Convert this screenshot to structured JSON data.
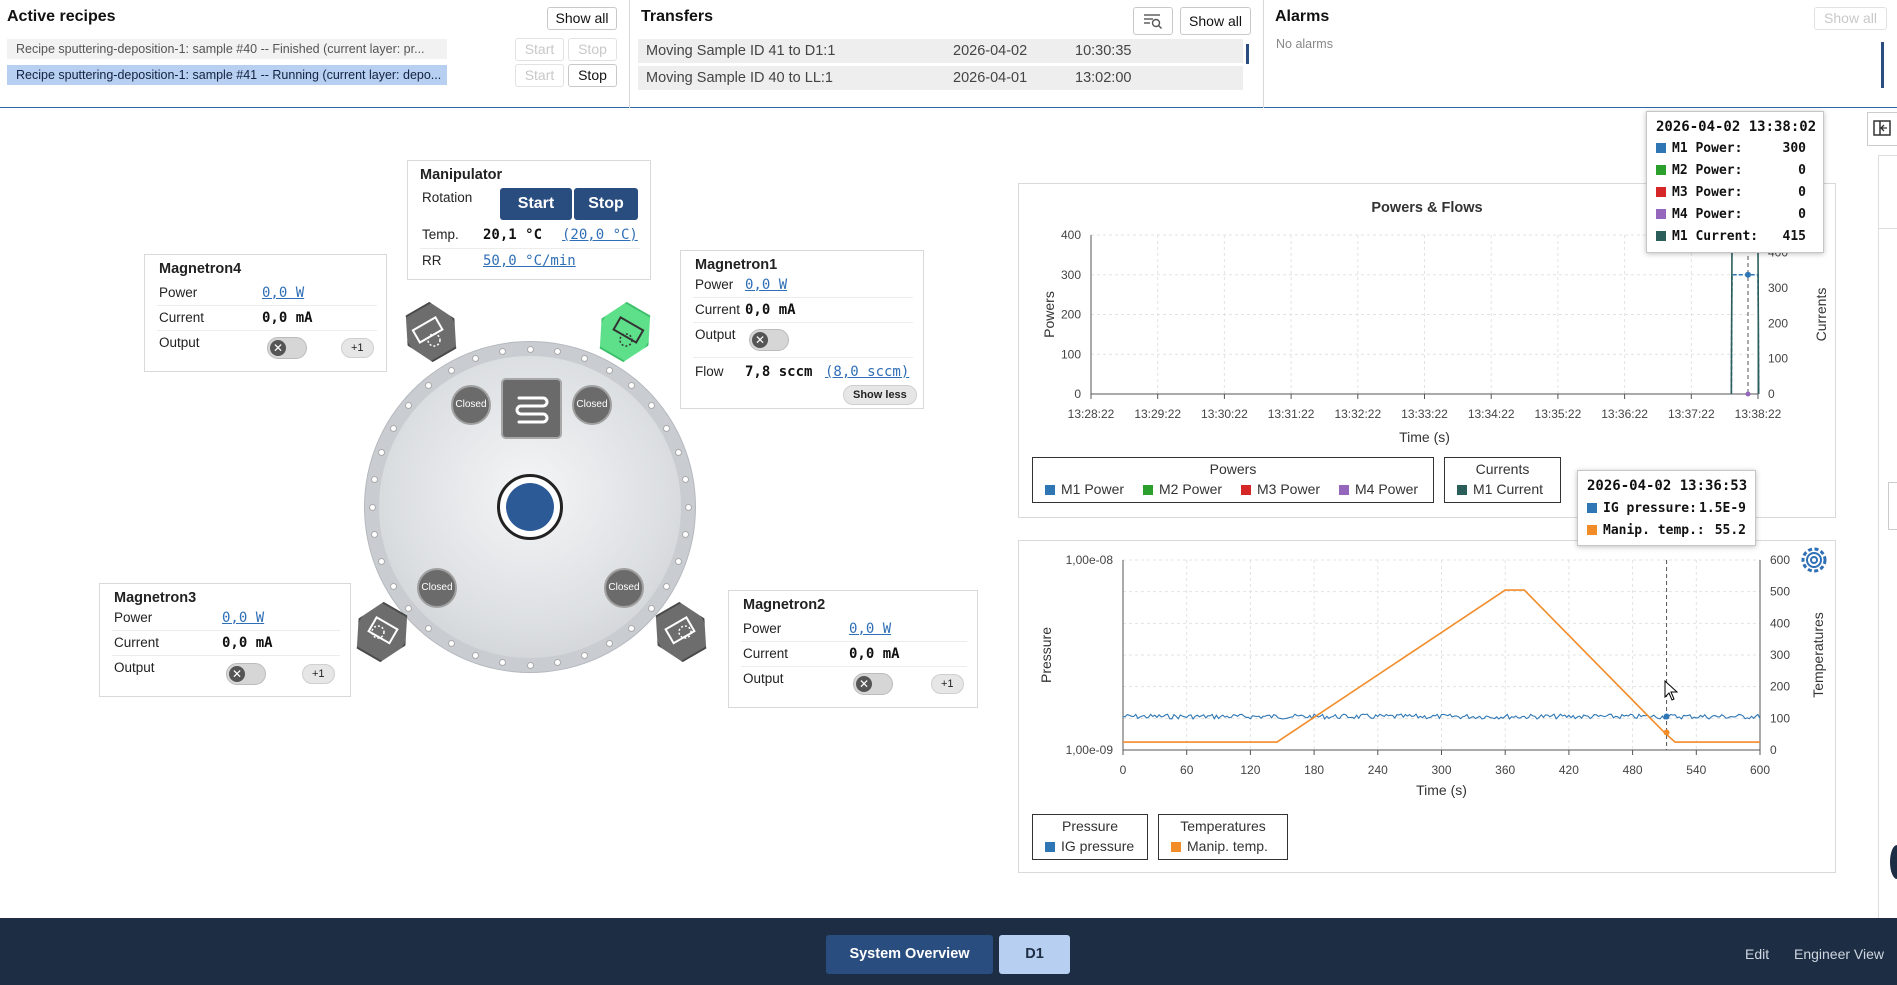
{
  "active_recipes": {
    "title": "Active recipes",
    "show_all": "Show all",
    "rows": [
      {
        "text": "Recipe sputtering-deposition-1: sample #40 -- Finished (current layer: pr...",
        "start": "Start",
        "stop": "Stop"
      },
      {
        "text": "Recipe sputtering-deposition-1: sample #41 -- Running (current layer: depo...",
        "start": "Start",
        "stop": "Stop"
      }
    ]
  },
  "transfers": {
    "title": "Transfers",
    "show_all": "Show all",
    "rows": [
      {
        "text": "Moving Sample ID 41 to D1:1",
        "date": "2026-04-02",
        "time": "10:30:35"
      },
      {
        "text": "Moving Sample ID 40 to LL:1",
        "date": "2026-04-01",
        "time": "13:02:00"
      }
    ]
  },
  "alarms": {
    "title": "Alarms",
    "show_all": "Show all",
    "empty": "No alarms"
  },
  "manipulator": {
    "title": "Manipulator",
    "rotation_label": "Rotation",
    "start": "Start",
    "stop": "Stop",
    "temp_label": "Temp.",
    "temp_value": "20,1 °C",
    "temp_setpoint": "(20,0 °C)",
    "rr_label": "RR",
    "rr_value": "50,0 °C/min"
  },
  "magnetron1": {
    "title": "Magnetron1",
    "power_label": "Power",
    "power_value": "0,0 W",
    "current_label": "Current",
    "current_value": "0,0 mA",
    "output_label": "Output",
    "flow_label": "Flow",
    "flow_value": "7,8 sccm",
    "flow_setpoint": "(8,0 sccm)",
    "show_less": "Show less"
  },
  "magnetron2": {
    "title": "Magnetron2",
    "power_label": "Power",
    "power_value": "0,0 W",
    "current_label": "Current",
    "current_value": "0,0 mA",
    "output_label": "Output",
    "more": "+1"
  },
  "magnetron3": {
    "title": "Magnetron3",
    "power_label": "Power",
    "power_value": "0,0 W",
    "current_label": "Current",
    "current_value": "0,0 mA",
    "output_label": "Output",
    "more": "+1"
  },
  "magnetron4": {
    "title": "Magnetron4",
    "power_label": "Power",
    "power_value": "0,0 W",
    "current_label": "Current",
    "current_value": "0,0 mA",
    "output_label": "Output",
    "more": "+1"
  },
  "chamber": {
    "shutters": [
      "Closed",
      "Closed",
      "Closed",
      "Closed"
    ],
    "colors": {
      "active_gun": "#5ee08a",
      "gun": "#6d6d6d",
      "sample": "#2c5a97"
    }
  },
  "chart_data": [
    {
      "type": "line",
      "title": "Powers & Flows",
      "xlabel": "Time (s)",
      "ylabel": "Powers",
      "y2label": "Currents",
      "x_ticks": [
        "13:28:22",
        "13:29:22",
        "13:30:22",
        "13:31:22",
        "13:32:22",
        "13:33:22",
        "13:34:22",
        "13:35:22",
        "13:36:22",
        "13:37:22",
        "13:38:22"
      ],
      "ylim": [
        0,
        400
      ],
      "y2lim": [
        0,
        450
      ],
      "y_ticks": [
        "0",
        "100",
        "200",
        "300",
        "400"
      ],
      "y2_ticks": [
        "0",
        "100",
        "200",
        "300",
        "400"
      ],
      "legend": {
        "powers_title": "Powers",
        "powers": [
          {
            "name": "M1 Power",
            "color": "#2f77b4"
          },
          {
            "name": "M2 Power",
            "color": "#2ca02c"
          },
          {
            "name": "M3 Power",
            "color": "#d62728"
          },
          {
            "name": "M4 Power",
            "color": "#9467bd"
          }
        ],
        "currents_title": "Currents",
        "currents": [
          {
            "name": "M1 Current",
            "color": "#2b5e5b"
          }
        ]
      },
      "series": [
        {
          "name": "M1 Power",
          "x": [
            9.6,
            9.61,
            10.0,
            10.01
          ],
          "y": [
            0,
            300,
            300,
            0
          ]
        },
        {
          "name": "M1 Current",
          "x": [
            9.6,
            9.61,
            10.0,
            10.01
          ],
          "y": [
            0,
            415,
            415,
            0
          ]
        }
      ],
      "tooltip": {
        "time": "2026-04-02 13:38:02",
        "rows": [
          {
            "label": "M1 Power:",
            "value": "300",
            "color": "#2f77b4"
          },
          {
            "label": "M2 Power:",
            "value": "0",
            "color": "#2ca02c"
          },
          {
            "label": "M3 Power:",
            "value": "0",
            "color": "#d62728"
          },
          {
            "label": "M4 Power:",
            "value": "0",
            "color": "#9467bd"
          },
          {
            "label": "M1 Current:",
            "value": "415",
            "color": "#2b5e5b"
          }
        ]
      }
    },
    {
      "type": "line",
      "xlabel": "Time (s)",
      "ylabel": "Pressure",
      "y2label": "Temperatures",
      "xlim": [
        0,
        600
      ],
      "x_ticks": [
        "0",
        "60",
        "120",
        "180",
        "240",
        "300",
        "360",
        "420",
        "480",
        "540",
        "600"
      ],
      "y_ticks": [
        "1,00e-09",
        "1,00e-08"
      ],
      "y2lim": [
        0,
        600
      ],
      "y2_ticks": [
        "0",
        "100",
        "200",
        "300",
        "400",
        "500",
        "600"
      ],
      "legend": {
        "pressure_title": "Pressure",
        "pressure": [
          {
            "name": "IG pressure",
            "color": "#2f77b4"
          }
        ],
        "temps_title": "Temperatures",
        "temps": [
          {
            "name": "Manip. temp.",
            "color": "#f28c28"
          }
        ]
      },
      "series": [
        {
          "name": "IG pressure",
          "x": [
            0,
            600
          ],
          "y": [
            1.5e-09,
            1.5e-09
          ]
        },
        {
          "name": "Manip. temp.",
          "x": [
            0,
            145,
            360,
            378,
            510,
            520,
            600
          ],
          "y": [
            25,
            25,
            505,
            505,
            55,
            25,
            25
          ]
        }
      ],
      "tooltip": {
        "time": "2026-04-02 13:36:53",
        "rows": [
          {
            "label": "IG pressure:",
            "value": "1.5E-9",
            "color": "#2f77b4"
          },
          {
            "label": "Manip. temp.:",
            "value": "55.2",
            "color": "#f28c28"
          }
        ]
      }
    }
  ],
  "bottom_nav": {
    "system_overview": "System Overview",
    "d1": "D1",
    "edit": "Edit",
    "engineer_view": "Engineer View"
  }
}
